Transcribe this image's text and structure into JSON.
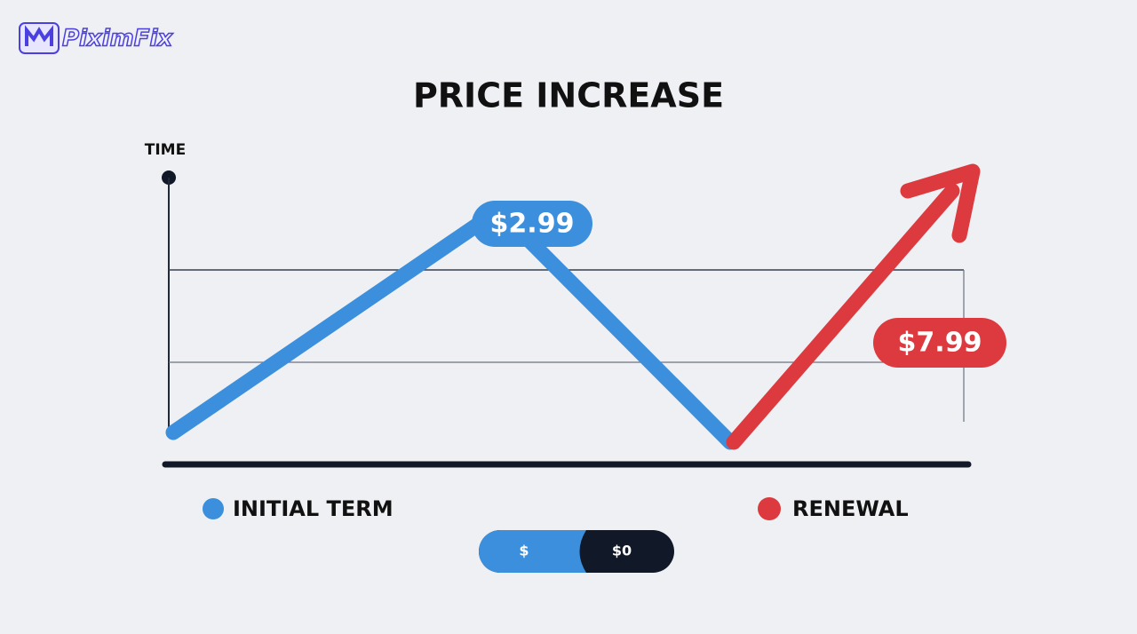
{
  "logo": {
    "text": "PiximFix"
  },
  "title": "PRICE INCREASE",
  "axis_label": "TIME",
  "labels": {
    "initial_price": "$2.99",
    "renewal_price": "$7.99"
  },
  "legend": {
    "initial": "INITIAL TERM",
    "renewal": "RENEWAL"
  },
  "toggle": {
    "left": "$",
    "right": "$0"
  }
}
